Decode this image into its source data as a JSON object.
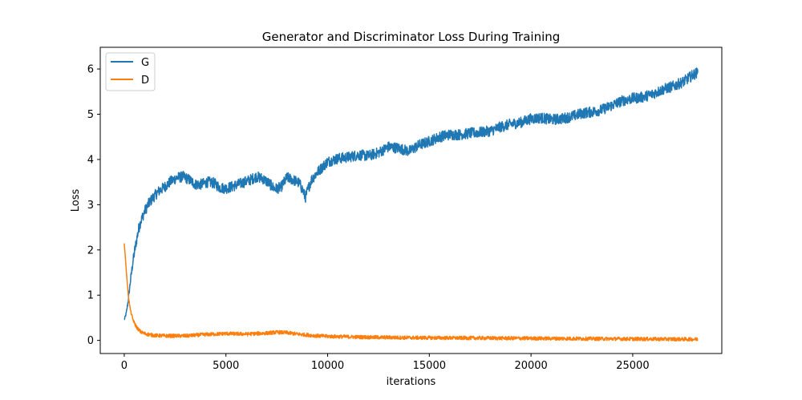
{
  "chart_data": {
    "type": "line",
    "title": "Generator and Discriminator Loss During Training",
    "xlabel": "iterations",
    "ylabel": "Loss",
    "xlim": [
      -1180,
      29380
    ],
    "ylim": [
      -0.29,
      6.48
    ],
    "xticks": [
      0,
      5000,
      10000,
      15000,
      20000,
      25000
    ],
    "yticks": [
      0,
      1,
      2,
      3,
      4,
      5,
      6
    ],
    "grid": false,
    "legend": "top-left",
    "series": [
      {
        "name": "G",
        "color": "#1f77b4",
        "x": [
          0,
          100,
          200,
          300,
          400,
          500,
          600,
          700,
          800,
          1000,
          1200,
          1400,
          1700,
          2000,
          2300,
          2600,
          2900,
          3200,
          3500,
          3800,
          4100,
          4400,
          4700,
          5000,
          5300,
          5600,
          5900,
          6200,
          6500,
          6800,
          7100,
          7400,
          7700,
          8000,
          8300,
          8600,
          8800,
          8900,
          9000,
          9200,
          9500,
          10000,
          10500,
          11000,
          11500,
          12000,
          12500,
          13000,
          13500,
          14000,
          14500,
          15000,
          15500,
          16000,
          16500,
          17000,
          17500,
          18000,
          18500,
          19000,
          19500,
          20000,
          20500,
          21000,
          21500,
          22000,
          22500,
          23000,
          23500,
          24000,
          24500,
          25000,
          25500,
          26000,
          26500,
          27000,
          27500,
          28000,
          28200
        ],
        "values": [
          0.45,
          0.6,
          0.9,
          1.3,
          1.65,
          1.95,
          2.2,
          2.45,
          2.62,
          2.85,
          3.02,
          3.15,
          3.3,
          3.4,
          3.52,
          3.6,
          3.62,
          3.55,
          3.45,
          3.45,
          3.5,
          3.48,
          3.38,
          3.36,
          3.4,
          3.45,
          3.5,
          3.55,
          3.62,
          3.58,
          3.48,
          3.35,
          3.38,
          3.6,
          3.55,
          3.48,
          3.3,
          3.15,
          3.3,
          3.55,
          3.72,
          3.95,
          4.02,
          4.05,
          4.1,
          4.08,
          4.15,
          4.28,
          4.25,
          4.18,
          4.32,
          4.4,
          4.5,
          4.55,
          4.55,
          4.58,
          4.6,
          4.63,
          4.72,
          4.78,
          4.82,
          4.9,
          4.92,
          4.88,
          4.9,
          4.95,
          5.02,
          5.05,
          5.1,
          5.2,
          5.3,
          5.35,
          5.38,
          5.45,
          5.55,
          5.62,
          5.72,
          5.88,
          5.92
        ],
        "noise": 0.12
      },
      {
        "name": "D",
        "color": "#ff7f0e",
        "x": [
          0,
          50,
          100,
          150,
          200,
          250,
          300,
          400,
          500,
          600,
          700,
          800,
          1000,
          1200,
          1500,
          2000,
          2500,
          3000,
          4000,
          5000,
          6000,
          7000,
          7500,
          8000,
          8500,
          9000,
          9500,
          10000,
          12000,
          14000,
          16000,
          18000,
          20000,
          22000,
          24000,
          26000,
          28200
        ],
        "values": [
          2.15,
          1.85,
          1.55,
          1.25,
          1.0,
          0.82,
          0.68,
          0.5,
          0.38,
          0.3,
          0.24,
          0.19,
          0.15,
          0.13,
          0.11,
          0.1,
          0.1,
          0.1,
          0.13,
          0.15,
          0.14,
          0.16,
          0.18,
          0.17,
          0.14,
          0.12,
          0.1,
          0.09,
          0.07,
          0.06,
          0.055,
          0.05,
          0.045,
          0.04,
          0.035,
          0.03,
          0.025
        ],
        "noise": 0.04
      }
    ]
  }
}
